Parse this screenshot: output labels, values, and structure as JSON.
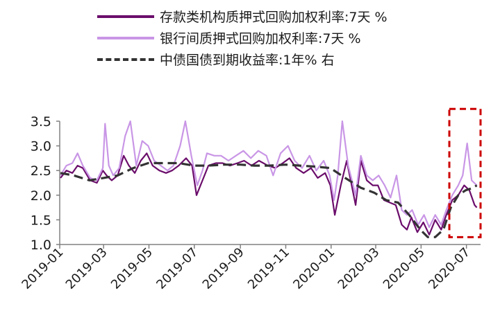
{
  "chart_data": {
    "type": "line",
    "title": "",
    "xlabel": "",
    "ylabel": "",
    "ylim": [
      1.0,
      3.5
    ],
    "yticks": [
      "1.0",
      "1.5",
      "2.0",
      "2.5",
      "3.0",
      "3.5"
    ],
    "xticks": [
      "2019-01",
      "2019-03",
      "2019-05",
      "2019-07",
      "2019-09",
      "2019-11",
      "2020-01",
      "2020-03",
      "2020-05",
      "2020-07"
    ],
    "grid": false,
    "legend_position": "top",
    "series": [
      {
        "name": "存款类机构质押式回购加权利率:7天 %",
        "color": "#6b0d6b",
        "style": "solid",
        "points": [
          [
            "2019-01-02",
            2.35
          ],
          [
            "2019-01-10",
            2.5
          ],
          [
            "2019-01-18",
            2.45
          ],
          [
            "2019-01-25",
            2.6
          ],
          [
            "2019-02-01",
            2.55
          ],
          [
            "2019-02-11",
            2.3
          ],
          [
            "2019-02-20",
            2.25
          ],
          [
            "2019-02-28",
            2.5
          ],
          [
            "2019-03-05",
            2.4
          ],
          [
            "2019-03-12",
            2.3
          ],
          [
            "2019-03-20",
            2.4
          ],
          [
            "2019-03-28",
            2.8
          ],
          [
            "2019-04-04",
            2.6
          ],
          [
            "2019-04-12",
            2.45
          ],
          [
            "2019-04-20",
            2.7
          ],
          [
            "2019-04-28",
            2.85
          ],
          [
            "2019-05-06",
            2.6
          ],
          [
            "2019-05-15",
            2.5
          ],
          [
            "2019-05-24",
            2.45
          ],
          [
            "2019-06-01",
            2.5
          ],
          [
            "2019-06-10",
            2.6
          ],
          [
            "2019-06-20",
            2.75
          ],
          [
            "2019-06-28",
            2.6
          ],
          [
            "2019-07-04",
            2.0
          ],
          [
            "2019-07-12",
            2.3
          ],
          [
            "2019-07-20",
            2.6
          ],
          [
            "2019-07-30",
            2.65
          ],
          [
            "2019-08-08",
            2.65
          ],
          [
            "2019-08-18",
            2.6
          ],
          [
            "2019-08-28",
            2.65
          ],
          [
            "2019-09-06",
            2.7
          ],
          [
            "2019-09-16",
            2.6
          ],
          [
            "2019-09-26",
            2.7
          ],
          [
            "2019-10-08",
            2.6
          ],
          [
            "2019-10-18",
            2.55
          ],
          [
            "2019-10-28",
            2.65
          ],
          [
            "2019-11-06",
            2.75
          ],
          [
            "2019-11-15",
            2.55
          ],
          [
            "2019-11-25",
            2.45
          ],
          [
            "2019-12-05",
            2.55
          ],
          [
            "2019-12-14",
            2.35
          ],
          [
            "2019-12-24",
            2.45
          ],
          [
            "2019-12-31",
            2.2
          ],
          [
            "2020-01-06",
            1.6
          ],
          [
            "2020-01-14",
            2.2
          ],
          [
            "2020-01-22",
            2.7
          ],
          [
            "2020-02-03",
            1.8
          ],
          [
            "2020-02-10",
            2.7
          ],
          [
            "2020-02-18",
            2.3
          ],
          [
            "2020-02-26",
            2.2
          ],
          [
            "2020-03-04",
            2.2
          ],
          [
            "2020-03-12",
            1.9
          ],
          [
            "2020-03-20",
            1.85
          ],
          [
            "2020-03-28",
            1.8
          ],
          [
            "2020-04-05",
            1.4
          ],
          [
            "2020-04-12",
            1.3
          ],
          [
            "2020-04-18",
            1.55
          ],
          [
            "2020-04-26",
            1.25
          ],
          [
            "2020-05-04",
            1.45
          ],
          [
            "2020-05-12",
            1.2
          ],
          [
            "2020-05-20",
            1.5
          ],
          [
            "2020-05-28",
            1.3
          ],
          [
            "2020-06-04",
            1.6
          ],
          [
            "2020-06-12",
            1.9
          ],
          [
            "2020-06-20",
            2.0
          ],
          [
            "2020-06-28",
            2.2
          ],
          [
            "2020-07-05",
            2.1
          ],
          [
            "2020-07-12",
            1.8
          ],
          [
            "2020-07-15",
            1.75
          ]
        ]
      },
      {
        "name": "银行间质押式回购加权利率:7天 %",
        "color": "#c996e6",
        "style": "solid",
        "points": [
          [
            "2019-01-02",
            2.4
          ],
          [
            "2019-01-10",
            2.6
          ],
          [
            "2019-01-18",
            2.65
          ],
          [
            "2019-01-25",
            2.85
          ],
          [
            "2019-02-01",
            2.6
          ],
          [
            "2019-02-11",
            2.35
          ],
          [
            "2019-02-20",
            2.3
          ],
          [
            "2019-02-28",
            2.55
          ],
          [
            "2019-03-03",
            3.45
          ],
          [
            "2019-03-08",
            2.6
          ],
          [
            "2019-03-14",
            2.4
          ],
          [
            "2019-03-22",
            2.55
          ],
          [
            "2019-03-30",
            3.2
          ],
          [
            "2019-04-06",
            3.5
          ],
          [
            "2019-04-14",
            2.6
          ],
          [
            "2019-04-22",
            3.1
          ],
          [
            "2019-04-30",
            3.0
          ],
          [
            "2019-05-08",
            2.7
          ],
          [
            "2019-05-17",
            2.6
          ],
          [
            "2019-05-26",
            2.5
          ],
          [
            "2019-06-03",
            2.6
          ],
          [
            "2019-06-12",
            3.0
          ],
          [
            "2019-06-19",
            3.5
          ],
          [
            "2019-06-27",
            2.8
          ],
          [
            "2019-07-05",
            2.2
          ],
          [
            "2019-07-12",
            2.5
          ],
          [
            "2019-07-18",
            2.85
          ],
          [
            "2019-07-28",
            2.8
          ],
          [
            "2019-08-06",
            2.8
          ],
          [
            "2019-08-16",
            2.7
          ],
          [
            "2019-08-26",
            2.8
          ],
          [
            "2019-09-05",
            2.9
          ],
          [
            "2019-09-15",
            2.75
          ],
          [
            "2019-09-25",
            2.9
          ],
          [
            "2019-10-06",
            2.8
          ],
          [
            "2019-10-15",
            2.4
          ],
          [
            "2019-10-25",
            2.85
          ],
          [
            "2019-11-04",
            3.0
          ],
          [
            "2019-11-13",
            2.7
          ],
          [
            "2019-11-23",
            2.55
          ],
          [
            "2019-12-03",
            2.8
          ],
          [
            "2019-12-12",
            2.5
          ],
          [
            "2019-12-22",
            2.7
          ],
          [
            "2019-12-30",
            2.4
          ],
          [
            "2020-01-05",
            1.9
          ],
          [
            "2020-01-10",
            2.4
          ],
          [
            "2020-01-16",
            3.5
          ],
          [
            "2020-01-24",
            2.6
          ],
          [
            "2020-02-03",
            2.0
          ],
          [
            "2020-02-10",
            2.8
          ],
          [
            "2020-02-18",
            2.4
          ],
          [
            "2020-02-26",
            2.3
          ],
          [
            "2020-03-05",
            2.4
          ],
          [
            "2020-03-13",
            2.2
          ],
          [
            "2020-03-21",
            1.95
          ],
          [
            "2020-03-29",
            2.4
          ],
          [
            "2020-04-05",
            1.7
          ],
          [
            "2020-04-12",
            1.6
          ],
          [
            "2020-04-19",
            1.7
          ],
          [
            "2020-04-27",
            1.4
          ],
          [
            "2020-05-05",
            1.6
          ],
          [
            "2020-05-12",
            1.35
          ],
          [
            "2020-05-20",
            1.6
          ],
          [
            "2020-05-28",
            1.4
          ],
          [
            "2020-06-04",
            1.7
          ],
          [
            "2020-06-12",
            2.0
          ],
          [
            "2020-06-20",
            2.2
          ],
          [
            "2020-06-26",
            2.4
          ],
          [
            "2020-07-02",
            3.05
          ],
          [
            "2020-07-08",
            2.3
          ],
          [
            "2020-07-15",
            2.2
          ]
        ]
      },
      {
        "name": "中债国债到期收益率:1年% 右",
        "color": "#333333",
        "style": "dashed",
        "points": [
          [
            "2019-01-02",
            2.45
          ],
          [
            "2019-01-20",
            2.4
          ],
          [
            "2019-02-10",
            2.3
          ],
          [
            "2019-03-01",
            2.35
          ],
          [
            "2019-03-20",
            2.4
          ],
          [
            "2019-04-10",
            2.55
          ],
          [
            "2019-04-30",
            2.65
          ],
          [
            "2019-05-20",
            2.65
          ],
          [
            "2019-06-10",
            2.65
          ],
          [
            "2019-06-30",
            2.6
          ],
          [
            "2019-07-20",
            2.6
          ],
          [
            "2019-08-10",
            2.62
          ],
          [
            "2019-09-01",
            2.62
          ],
          [
            "2019-09-20",
            2.6
          ],
          [
            "2019-10-10",
            2.6
          ],
          [
            "2019-11-01",
            2.62
          ],
          [
            "2019-11-20",
            2.6
          ],
          [
            "2019-12-10",
            2.58
          ],
          [
            "2019-12-31",
            2.55
          ],
          [
            "2020-01-20",
            2.35
          ],
          [
            "2020-02-10",
            2.15
          ],
          [
            "2020-02-28",
            2.05
          ],
          [
            "2020-03-15",
            1.9
          ],
          [
            "2020-03-31",
            1.85
          ],
          [
            "2020-04-15",
            1.6
          ],
          [
            "2020-04-30",
            1.3
          ],
          [
            "2020-05-10",
            1.15
          ],
          [
            "2020-05-20",
            1.15
          ],
          [
            "2020-05-31",
            1.3
          ],
          [
            "2020-06-10",
            1.75
          ],
          [
            "2020-06-20",
            2.0
          ],
          [
            "2020-06-30",
            2.1
          ],
          [
            "2020-07-10",
            2.15
          ],
          [
            "2020-07-15",
            2.2
          ]
        ]
      }
    ],
    "highlight_box": {
      "x_start": "2020-06-08",
      "x_end": "2020-07-20",
      "y_start": 1.15,
      "y_end": 3.75,
      "color": "#cc0000",
      "style": "dashed"
    }
  }
}
